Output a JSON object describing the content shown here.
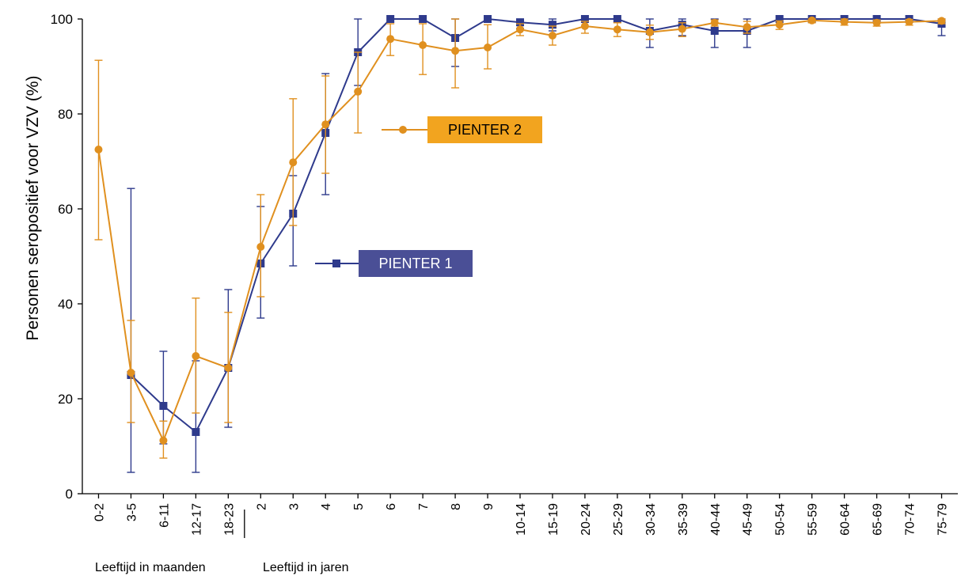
{
  "chart_data": {
    "type": "line",
    "title": "",
    "ylabel": "Personen seropositief voor VZV (%)",
    "ylim": [
      0,
      100
    ],
    "yticks": [
      0,
      20,
      40,
      60,
      80,
      100
    ],
    "grid": false,
    "categories": [
      "0-2",
      "3-5",
      "6-11",
      "12-17",
      "18-23",
      "2",
      "3",
      "4",
      "5",
      "6",
      "7",
      "8",
      "9",
      "10-14",
      "15-19",
      "20-24",
      "25-29",
      "30-34",
      "35-39",
      "40-44",
      "45-49",
      "50-54",
      "55-59",
      "60-64",
      "65-69",
      "70-74",
      "75-79"
    ],
    "group_labels": [
      "Leeftijd in maanden",
      "Leeftijd in jaren"
    ],
    "series": [
      {
        "name": "PIENTER 1",
        "color": "#2e3a8c",
        "marker": "square",
        "values": [
          null,
          25,
          18.5,
          13,
          26.5,
          48.5,
          59,
          76,
          93,
          100,
          100,
          96,
          100,
          99.3,
          98.8,
          100,
          100,
          97.5,
          98.8,
          97.5,
          97.5,
          100,
          100,
          100,
          100,
          100,
          99
        ],
        "error_low": [
          null,
          4.5,
          10.5,
          4.5,
          14,
          37,
          48,
          63,
          86,
          100,
          100,
          90,
          100,
          98,
          97.5,
          100,
          100,
          94,
          96.5,
          94,
          94,
          100,
          100,
          100,
          100,
          100,
          96.5
        ],
        "error_high": [
          null,
          64.3,
          30,
          28,
          43,
          60.5,
          67,
          88.5,
          100,
          100,
          100,
          100,
          100,
          100,
          100,
          100,
          100,
          100,
          100,
          100,
          100,
          100,
          100,
          100,
          100,
          100,
          100
        ]
      },
      {
        "name": "PIENTER 2",
        "color": "#e0901f",
        "marker": "circle",
        "values": [
          72.5,
          25.5,
          11.2,
          29,
          26.5,
          52,
          69.8,
          77.8,
          84.7,
          95.8,
          94.5,
          93.3,
          94,
          97.8,
          96.5,
          98.5,
          97.8,
          97.2,
          97.9,
          99.2,
          98.3,
          98.8,
          99.7,
          99.4,
          99.2,
          99.4,
          99.6
        ],
        "error_low": [
          53.5,
          15,
          7.5,
          17,
          15,
          41.5,
          56.5,
          67.5,
          76,
          92.3,
          88.3,
          85.5,
          89.5,
          96.5,
          94.5,
          97,
          96.3,
          95.7,
          96.3,
          98.5,
          97,
          97.8,
          99.2,
          98.7,
          98.5,
          98.7,
          99
        ],
        "error_high": [
          91.3,
          36.5,
          15.3,
          41.2,
          38.2,
          63,
          83.2,
          88,
          93,
          99,
          99,
          100,
          98.8,
          99,
          98.5,
          99.5,
          99.2,
          98.7,
          99.2,
          99.8,
          99.5,
          99.6,
          100,
          100,
          99.8,
          99.9,
          100
        ]
      }
    ],
    "legend": [
      {
        "label": "PIENTER 2",
        "bg_color": "#f2a41f",
        "text_color": "#000000"
      },
      {
        "label": "PIENTER 1",
        "bg_color": "#4a4f96",
        "text_color": "#ffffff"
      }
    ]
  }
}
